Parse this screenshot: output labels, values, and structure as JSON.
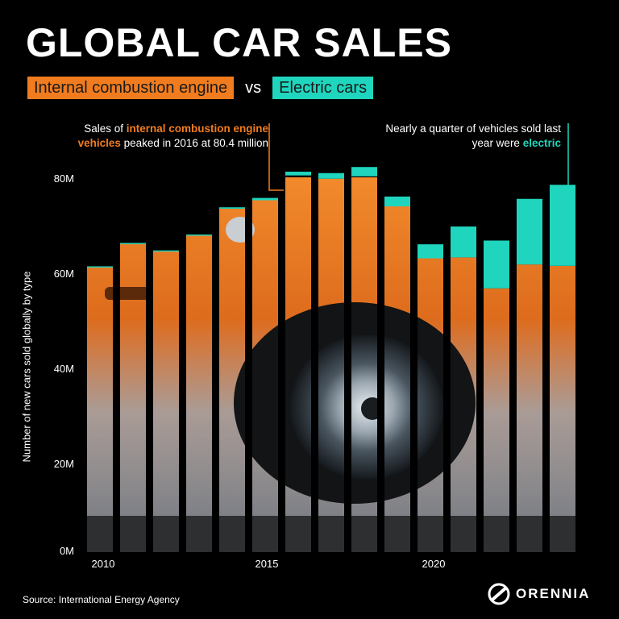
{
  "title": "GLOBAL CAR SALES",
  "legend": {
    "ice_label": "Internal combustion engine",
    "vs": "vs",
    "ev_label": "Electric cars"
  },
  "annotations": {
    "ice_peak": {
      "part1": "Sales of ",
      "highlight": "internal combustion engine vehicles",
      "part2": " peaked in 2016 at 80.4 million"
    },
    "ev_share": {
      "part1": "Nearly a quarter of vehicles sold last year were ",
      "highlight": "electric"
    }
  },
  "colors": {
    "ice": "#f07c1f",
    "ev": "#1fd5bd",
    "background": "#000000"
  },
  "chart_data": {
    "type": "bar",
    "stacked": true,
    "categories": [
      "2010",
      "2011",
      "2012",
      "2013",
      "2014",
      "2015",
      "2016",
      "2017",
      "2018",
      "2019",
      "2020",
      "2021",
      "2022",
      "2023",
      "2024"
    ],
    "series": [
      {
        "name": "Internal combustion engine",
        "values": [
          61.0,
          65.9,
          64.3,
          67.6,
          73.3,
          75.1,
          80.4,
          79.7,
          80.2,
          73.8,
          62.7,
          62.9,
          56.3,
          61.4,
          61.1
        ]
      },
      {
        "name": "Electric cars",
        "values": [
          0.0,
          0.1,
          0.1,
          0.2,
          0.3,
          0.5,
          0.8,
          1.2,
          2.0,
          2.1,
          3.0,
          6.6,
          10.2,
          14.0,
          17.3
        ]
      }
    ],
    "ylabel": "Number of new cars sold globally by type",
    "ylim": [
      0,
      80
    ],
    "yticks": [
      "0M",
      "20M",
      "40M",
      "60M",
      "80M"
    ],
    "xticks": [
      "2010",
      "2015",
      "2020"
    ],
    "grid": false
  },
  "source": "Source: International Energy Agency",
  "logo": {
    "name": "ORENNIA",
    "icon": "orennia-logo-icon"
  }
}
